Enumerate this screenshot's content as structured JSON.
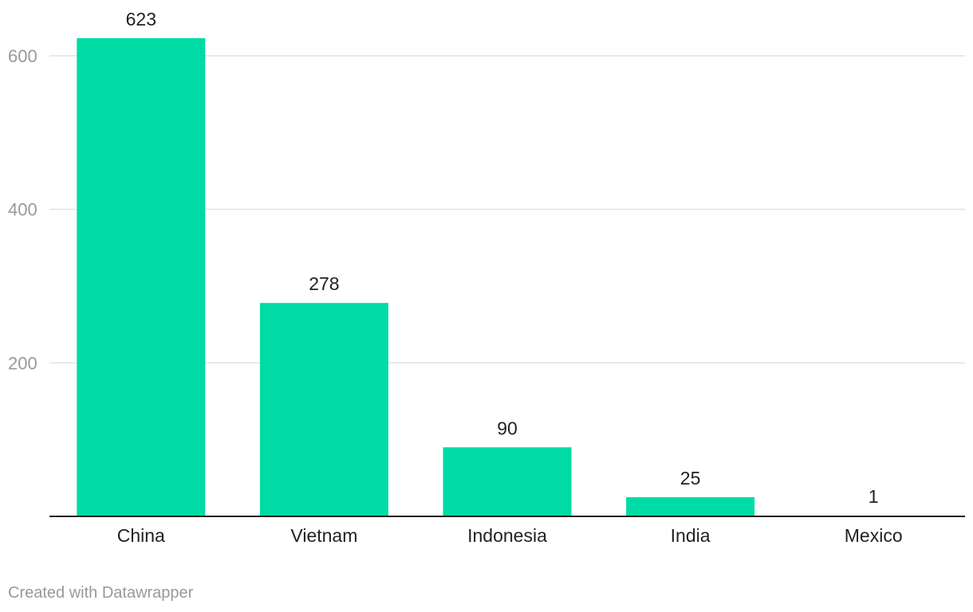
{
  "chart_data": {
    "type": "bar",
    "categories": [
      "China",
      "Vietnam",
      "Indonesia",
      "India",
      "Mexico"
    ],
    "values": [
      623,
      278,
      90,
      25,
      1
    ],
    "data_labels": [
      "623",
      "278",
      "90",
      "25",
      "1"
    ],
    "ylim": [
      0,
      600
    ],
    "yticks": [
      200,
      400,
      600
    ],
    "ytick_labels": [
      "200",
      "400",
      "600"
    ],
    "grid": true,
    "bar_color": "#00dba5",
    "title": "",
    "xlabel": "",
    "ylabel": ""
  },
  "footer": {
    "credit": "Created with Datawrapper"
  }
}
